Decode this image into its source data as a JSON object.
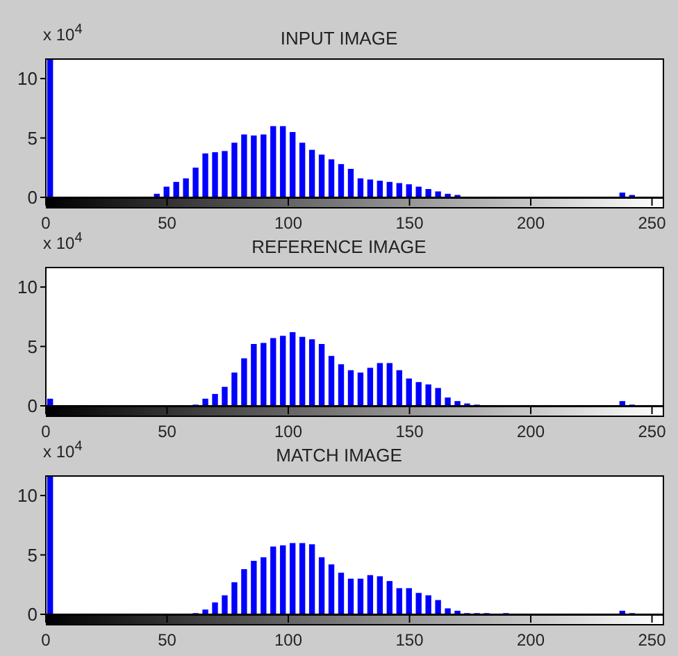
{
  "chart_data": [
    {
      "type": "bar",
      "title": "INPUT IMAGE",
      "annotations": [
        "x 10$^{4}$"
      ],
      "color": "#0000ff",
      "x": [
        2,
        46,
        50,
        54,
        58,
        62,
        66,
        70,
        74,
        78,
        82,
        86,
        90,
        94,
        98,
        102,
        106,
        110,
        114,
        118,
        122,
        126,
        130,
        134,
        138,
        142,
        146,
        150,
        154,
        158,
        162,
        166,
        170,
        238,
        242
      ],
      "values": [
        11.7,
        0.3,
        0.9,
        1.3,
        1.6,
        2.5,
        3.7,
        3.8,
        3.9,
        4.6,
        5.3,
        5.2,
        5.3,
        6.0,
        6.0,
        5.5,
        4.6,
        4.0,
        3.6,
        3.2,
        2.8,
        2.4,
        1.6,
        1.5,
        1.4,
        1.3,
        1.2,
        1.1,
        0.9,
        0.7,
        0.5,
        0.3,
        0.2,
        0.4,
        0.2
      ],
      "xlim": [
        0,
        255
      ],
      "xticks": [
        0,
        50,
        100,
        150,
        200,
        250
      ],
      "ylim": [
        0,
        11.7
      ],
      "yticks": [
        0,
        5,
        10
      ]
    },
    {
      "type": "bar",
      "title": "REFERENCE IMAGE",
      "annotations": [
        "x 10$^{4}$"
      ],
      "color": "#0000ff",
      "x": [
        2,
        62,
        66,
        70,
        74,
        78,
        82,
        86,
        90,
        94,
        98,
        102,
        106,
        110,
        114,
        118,
        122,
        126,
        130,
        134,
        138,
        142,
        146,
        150,
        154,
        158,
        162,
        166,
        170,
        174,
        178,
        238,
        242
      ],
      "values": [
        0.6,
        0.1,
        0.6,
        1.0,
        1.6,
        2.8,
        4.0,
        5.2,
        5.3,
        5.7,
        5.9,
        6.2,
        5.8,
        5.6,
        5.2,
        4.2,
        3.5,
        3.0,
        2.8,
        3.2,
        3.6,
        3.6,
        3.0,
        2.3,
        2.0,
        1.8,
        1.5,
        0.7,
        0.4,
        0.2,
        0.1,
        0.4,
        0.1
      ],
      "xlim": [
        0,
        255
      ],
      "xticks": [
        0,
        50,
        100,
        150,
        200,
        250
      ],
      "ylim": [
        0,
        11.7
      ],
      "yticks": [
        0,
        5,
        10
      ]
    },
    {
      "type": "bar",
      "title": "MATCH IMAGE",
      "annotations": [
        "x 10$^{4}$"
      ],
      "color": "#0000ff",
      "x": [
        2,
        62,
        66,
        70,
        74,
        78,
        82,
        86,
        90,
        94,
        98,
        102,
        106,
        110,
        114,
        118,
        122,
        126,
        130,
        134,
        138,
        142,
        146,
        150,
        154,
        158,
        162,
        166,
        170,
        174,
        178,
        182,
        190,
        238,
        242
      ],
      "values": [
        11.7,
        0.1,
        0.4,
        1.0,
        1.6,
        2.7,
        3.8,
        4.5,
        4.8,
        5.7,
        5.8,
        6.0,
        6.0,
        5.9,
        4.8,
        4.2,
        3.5,
        3.0,
        3.0,
        3.3,
        3.2,
        2.8,
        2.2,
        2.2,
        1.8,
        1.6,
        1.2,
        0.5,
        0.3,
        0.1,
        0.1,
        0.1,
        0.1,
        0.3,
        0.1
      ],
      "xlim": [
        0,
        255
      ],
      "xticks": [
        0,
        50,
        100,
        150,
        200,
        250
      ],
      "ylim": [
        0,
        11.7
      ],
      "yticks": [
        0,
        5,
        10
      ]
    }
  ]
}
